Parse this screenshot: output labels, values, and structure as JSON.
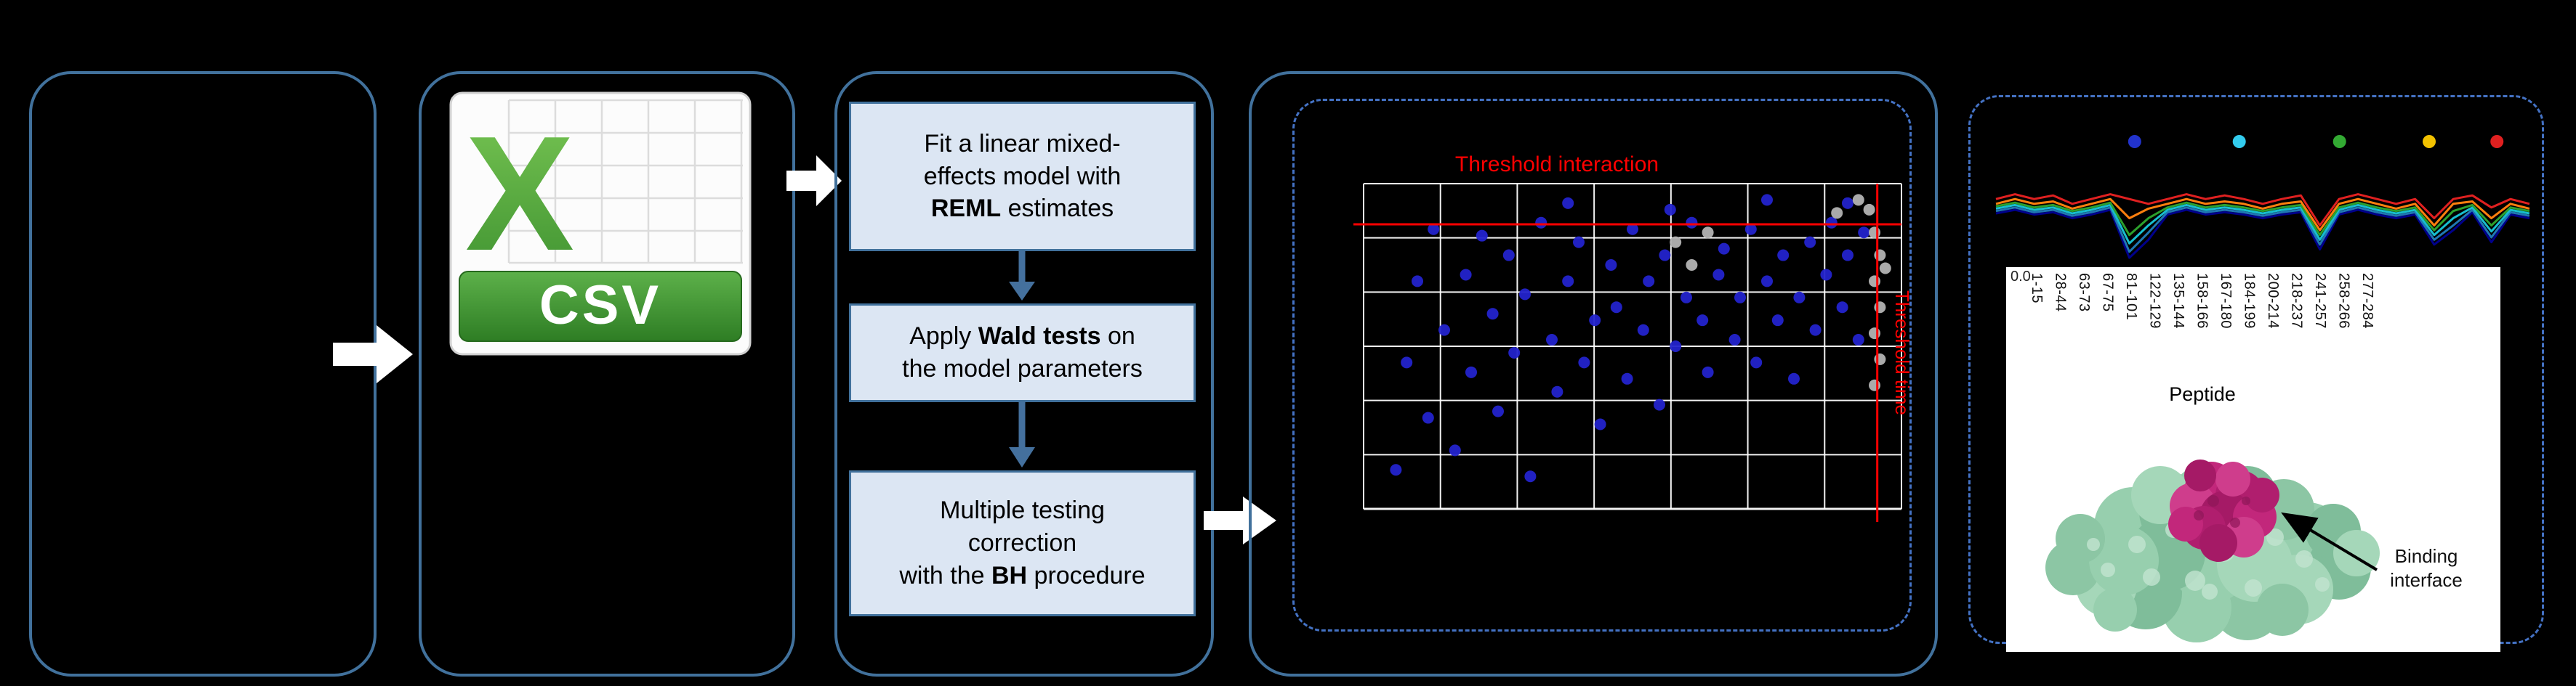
{
  "colors": {
    "background": "#000000",
    "panel_border": "#41719c",
    "dashed_border": "#4472c4",
    "flow_box_fill": "#dce6f3",
    "flow_box_border": "#41719c",
    "flow_arrow": "#44709d",
    "block_arrow": "#ffffff",
    "threshold_red": "#ff0000",
    "dot_blue": "#2323cc",
    "dot_grey": "#b3b3b3",
    "csv_green": "#3e9230",
    "protein_green": "#8cc6a4",
    "protein_magenta": "#c2277b"
  },
  "csv_icon": {
    "letter": "X",
    "banner": "CSV"
  },
  "methods": {
    "boxes": [
      {
        "lines": [
          {
            "pre": "Fit a linear mixed-"
          },
          {
            "pre": "effects model with"
          },
          {
            "bold": "REML",
            "post": " estimates"
          }
        ]
      },
      {
        "lines": [
          {
            "pre": "Apply ",
            "bold": "Wald tests",
            "post": " on"
          },
          {
            "pre": "the model parameters"
          },
          {}
        ]
      },
      {
        "lines": [
          {
            "pre": "Multiple testing"
          },
          {
            "pre": "correction"
          },
          {
            "pre": "with the ",
            "bold": "BH",
            "post": " procedure"
          }
        ]
      }
    ]
  },
  "peptide_axis": {
    "title": "Peptide",
    "labels": [
      "1-15",
      "28-44",
      "63-73",
      "67-75",
      "81-101",
      "122-129",
      "135-144",
      "158-166",
      "167-180",
      "184-199",
      "200-214",
      "218-237",
      "241-257",
      "258-266",
      "277-284"
    ]
  },
  "protein": {
    "annotation_line1": "Binding",
    "annotation_line2": "interface"
  },
  "chart_data": [
    {
      "type": "scatter",
      "title": "Threshold interaction",
      "right_label": "Threshold time",
      "grid": {
        "cols": 7,
        "rows": 6
      },
      "threshold_pct": {
        "horizontal_y": 12.5,
        "vertical_x": 95.5
      },
      "threshold_color": "#ff0000",
      "axes_visible": false,
      "series": [
        {
          "name": "blue",
          "color": "#2323cc",
          "points_pct": [
            [
              6,
              88
            ],
            [
              8,
              55
            ],
            [
              10,
              30
            ],
            [
              12,
              72
            ],
            [
              13,
              14
            ],
            [
              15,
              45
            ],
            [
              17,
              82
            ],
            [
              19,
              28
            ],
            [
              20,
              58
            ],
            [
              22,
              16
            ],
            [
              24,
              40
            ],
            [
              25,
              70
            ],
            [
              27,
              22
            ],
            [
              28,
              52
            ],
            [
              30,
              34
            ],
            [
              31,
              90
            ],
            [
              33,
              12
            ],
            [
              35,
              48
            ],
            [
              36,
              64
            ],
            [
              38,
              6
            ],
            [
              38,
              30
            ],
            [
              40,
              18
            ],
            [
              41,
              55
            ],
            [
              43,
              42
            ],
            [
              44,
              74
            ],
            [
              46,
              25
            ],
            [
              47,
              38
            ],
            [
              49,
              60
            ],
            [
              50,
              14
            ],
            [
              52,
              45
            ],
            [
              53,
              30
            ],
            [
              55,
              68
            ],
            [
              56,
              22
            ],
            [
              57,
              8
            ],
            [
              58,
              50
            ],
            [
              60,
              35
            ],
            [
              61,
              12
            ],
            [
              63,
              42
            ],
            [
              64,
              58
            ],
            [
              66,
              28
            ],
            [
              67,
              20
            ],
            [
              69,
              48
            ],
            [
              70,
              35
            ],
            [
              72,
              14
            ],
            [
              73,
              55
            ],
            [
              75,
              5
            ],
            [
              75,
              30
            ],
            [
              77,
              42
            ],
            [
              78,
              22
            ],
            [
              80,
              60
            ],
            [
              81,
              35
            ],
            [
              83,
              18
            ],
            [
              84,
              45
            ],
            [
              86,
              28
            ],
            [
              87,
              12
            ],
            [
              89,
              38
            ],
            [
              90,
              22
            ],
            [
              92,
              48
            ],
            [
              93,
              15
            ],
            [
              90,
              6
            ]
          ]
        },
        {
          "name": "grey",
          "color": "#b3b3b3",
          "points_pct": [
            [
              58,
              18
            ],
            [
              61,
              25
            ],
            [
              64,
              15
            ],
            [
              88,
              9
            ],
            [
              92,
              5
            ],
            [
              94,
              8
            ],
            [
              95,
              15
            ],
            [
              96,
              22
            ],
            [
              95,
              30
            ],
            [
              96,
              38
            ],
            [
              95,
              46
            ],
            [
              96,
              54
            ],
            [
              95,
              62
            ],
            [
              97,
              26
            ]
          ]
        }
      ]
    },
    {
      "type": "line",
      "ytick_label": "0.0",
      "marker_colors": [
        "#2233cc",
        "#33ccee",
        "#33aa33",
        "#f2c200",
        "#e02020"
      ],
      "marker_x_pct": [
        26,
        45.6,
        64.4,
        81.2,
        93.9
      ],
      "series": [
        {
          "name": "darkblue",
          "color": "#00008b",
          "values": [
            0.4,
            0.43,
            0.39,
            0.41,
            0.36,
            0.39,
            0.43,
            0.03,
            0.18,
            0.39,
            0.43,
            0.39,
            0.41,
            0.39,
            0.36,
            0.39,
            0.41,
            0.1,
            0.39,
            0.43,
            0.39,
            0.36,
            0.39,
            0.14,
            0.26,
            0.41,
            0.16,
            0.39,
            0.36
          ]
        },
        {
          "name": "blue",
          "color": "#1f77b4",
          "values": [
            0.42,
            0.45,
            0.41,
            0.43,
            0.38,
            0.41,
            0.45,
            0.08,
            0.24,
            0.41,
            0.45,
            0.41,
            0.43,
            0.41,
            0.38,
            0.41,
            0.43,
            0.14,
            0.41,
            0.45,
            0.41,
            0.38,
            0.41,
            0.18,
            0.3,
            0.43,
            0.2,
            0.41,
            0.38
          ]
        },
        {
          "name": "cyan",
          "color": "#17becf",
          "values": [
            0.44,
            0.47,
            0.43,
            0.45,
            0.4,
            0.43,
            0.47,
            0.15,
            0.3,
            0.43,
            0.47,
            0.43,
            0.45,
            0.43,
            0.4,
            0.43,
            0.45,
            0.18,
            0.43,
            0.47,
            0.43,
            0.4,
            0.43,
            0.22,
            0.36,
            0.45,
            0.25,
            0.43,
            0.4
          ]
        },
        {
          "name": "green",
          "color": "#2ca02c",
          "values": [
            0.46,
            0.49,
            0.45,
            0.47,
            0.42,
            0.45,
            0.49,
            0.22,
            0.36,
            0.45,
            0.49,
            0.45,
            0.47,
            0.45,
            0.42,
            0.45,
            0.47,
            0.22,
            0.45,
            0.49,
            0.45,
            0.42,
            0.45,
            0.26,
            0.42,
            0.47,
            0.3,
            0.45,
            0.42
          ]
        },
        {
          "name": "orange",
          "color": "#ff7f0e",
          "values": [
            0.48,
            0.52,
            0.48,
            0.5,
            0.44,
            0.48,
            0.52,
            0.36,
            0.44,
            0.48,
            0.52,
            0.48,
            0.5,
            0.48,
            0.44,
            0.48,
            0.5,
            0.26,
            0.48,
            0.52,
            0.48,
            0.44,
            0.48,
            0.3,
            0.48,
            0.5,
            0.36,
            0.48,
            0.44
          ]
        },
        {
          "name": "red",
          "color": "#e02020",
          "values": [
            0.52,
            0.56,
            0.52,
            0.55,
            0.48,
            0.52,
            0.56,
            0.52,
            0.48,
            0.52,
            0.56,
            0.52,
            0.55,
            0.52,
            0.48,
            0.52,
            0.55,
            0.3,
            0.52,
            0.56,
            0.52,
            0.48,
            0.52,
            0.36,
            0.52,
            0.55,
            0.45,
            0.52,
            0.48
          ]
        }
      ]
    }
  ]
}
